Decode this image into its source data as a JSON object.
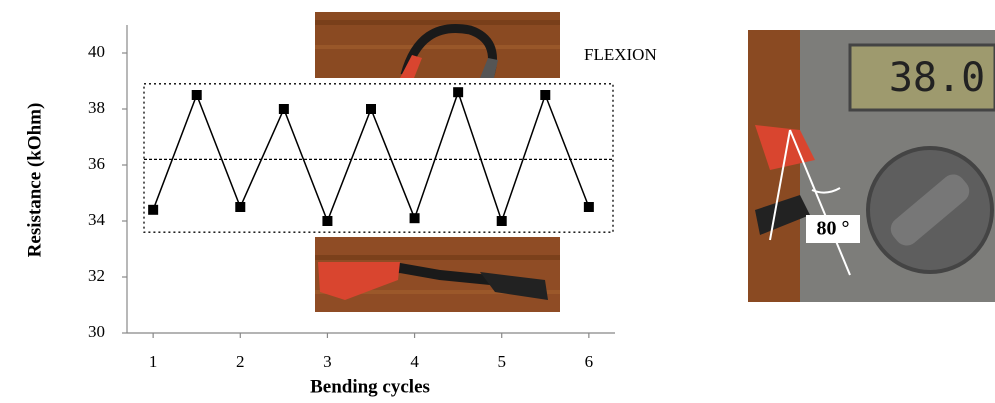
{
  "chart_data": {
    "type": "line",
    "x": [
      1,
      1.5,
      2,
      2.5,
      3,
      3.5,
      4,
      4.5,
      5,
      5.5,
      6
    ],
    "values": [
      34.4,
      38.5,
      34.5,
      38.0,
      34.0,
      38.0,
      34.1,
      38.6,
      34.0,
      38.5,
      34.5
    ],
    "color": "#000000",
    "xlabel": "Bending cycles",
    "ylabel": "Resistance (kOhm)",
    "xlim": [
      0.7,
      6.3
    ],
    "xticks": [
      1,
      2,
      3,
      4,
      5,
      6
    ],
    "ylim": [
      30,
      41
    ],
    "yticks": [
      30,
      32,
      34,
      36,
      38,
      40
    ],
    "band": [
      33.6,
      38.9
    ],
    "hline": 36.2,
    "annotation": "FLEXION"
  },
  "photo": {
    "display": "38.0",
    "angle": "80 °"
  }
}
